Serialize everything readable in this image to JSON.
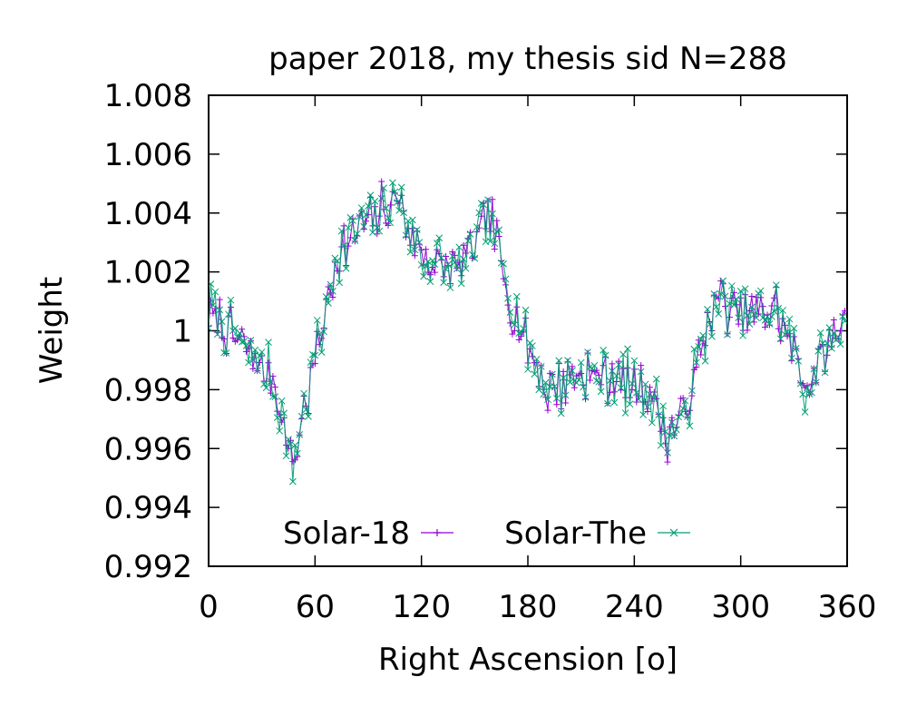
{
  "chart_data": {
    "type": "line",
    "title": "paper 2018, my thesis sid N=288",
    "xlabel": "Right Ascension [o]",
    "ylabel": "Weight",
    "xlim": [
      0,
      360
    ],
    "ylim": [
      0.992,
      1.008
    ],
    "x_ticks": [
      "0",
      "60",
      "120",
      "180",
      "240",
      "300",
      "360"
    ],
    "y_ticks": [
      "0.992",
      "0.994",
      "0.996",
      "0.998",
      "1",
      "1.002",
      "1.004",
      "1.006",
      "1.008"
    ],
    "grid": false,
    "legend_position": "bottom-center",
    "x": {
      "start": 0,
      "step": 1.25,
      "count": 288
    },
    "series": [
      {
        "name": "Solar-18",
        "color": "#9400d3",
        "marker": "plus",
        "x": [
          0,
          20,
          35,
          48,
          60,
          72,
          84,
          106,
          120,
          140,
          158,
          170,
          190,
          210,
          230,
          248,
          258,
          268,
          285,
          300,
          320,
          338,
          350,
          360
        ],
        "values": [
          1.0007,
          0.9995,
          0.9985,
          0.9955,
          0.999,
          1.0025,
          1.0035,
          1.0045,
          1.0025,
          1.002,
          1.004,
          1.001,
          0.998,
          0.9985,
          0.9985,
          0.998,
          0.9965,
          0.997,
          1.001,
          1.0005,
          1.0007,
          0.998,
          0.9995,
          1.0007
        ],
        "noise": 0.0008,
        "seed": 11
      },
      {
        "name": "Solar-The",
        "color": "#009e73",
        "marker": "cross",
        "x": [
          0,
          20,
          35,
          48,
          60,
          72,
          84,
          106,
          120,
          140,
          158,
          170,
          190,
          210,
          230,
          248,
          258,
          268,
          285,
          300,
          320,
          338,
          350,
          360
        ],
        "values": [
          1.0007,
          0.9995,
          0.9985,
          0.9955,
          0.999,
          1.0025,
          1.0035,
          1.0045,
          1.0025,
          1.002,
          1.004,
          1.001,
          0.998,
          0.9985,
          0.9985,
          0.998,
          0.9965,
          0.997,
          1.001,
          1.0005,
          1.0007,
          0.998,
          0.9995,
          1.0007
        ],
        "noise": 0.0009,
        "seed": 29
      }
    ]
  }
}
